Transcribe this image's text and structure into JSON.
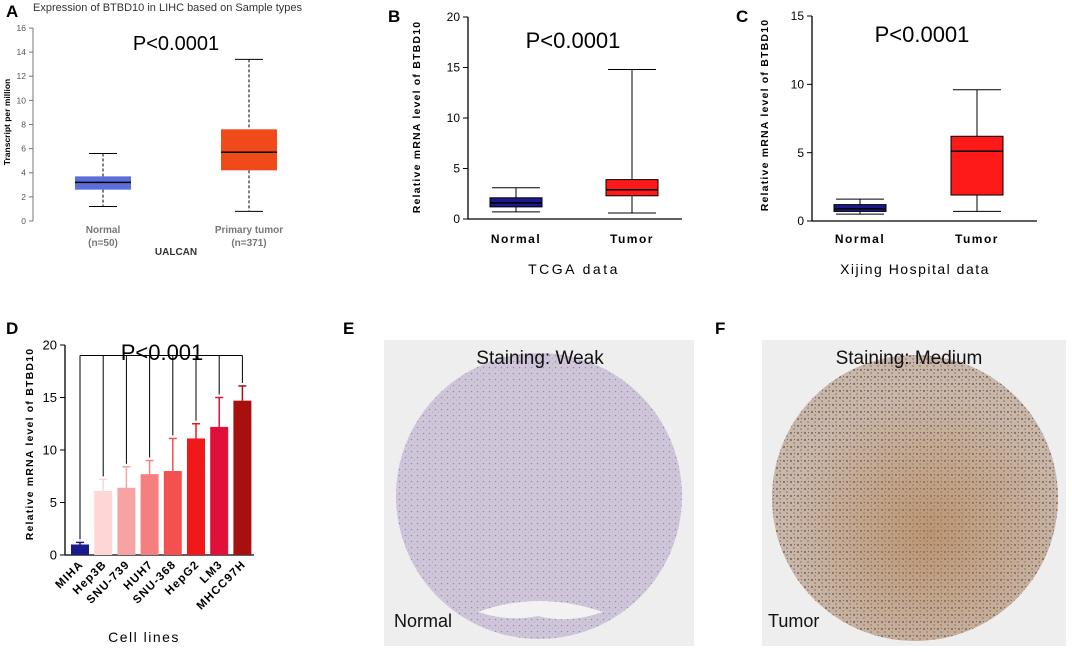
{
  "chart_data": [
    {
      "panel": "A",
      "type": "box",
      "title": "Expression of BTBD10 in LIHC based on Sample types",
      "annotation": "P<0.0001",
      "ylabel": "Transcript per million",
      "ylim": [
        0,
        16
      ],
      "yticks": [
        0,
        2,
        4,
        6,
        8,
        10,
        12,
        14,
        16
      ],
      "source": "UALCAN",
      "groups": [
        {
          "name": "Normal",
          "n": "(n=50)",
          "min": 1.2,
          "q1": 2.6,
          "median": 3.2,
          "q3": 3.7,
          "max": 5.6,
          "color": "#5b6fd9"
        },
        {
          "name": "Primary tumor",
          "n": "(n=371)",
          "min": 0.8,
          "q1": 4.2,
          "median": 5.7,
          "q3": 7.6,
          "max": 13.4,
          "color": "#f04a1a"
        }
      ]
    },
    {
      "panel": "B",
      "type": "box",
      "annotation": "P<0.0001",
      "ylabel": "Relative mRNA level of BTBD10",
      "ylim": [
        0,
        20
      ],
      "yticks": [
        0,
        5,
        10,
        15,
        20
      ],
      "xlabel": "TCGA  data",
      "groups": [
        {
          "name": "Normal",
          "min": 0.7,
          "q1": 1.2,
          "median": 1.6,
          "q3": 2.1,
          "max": 3.1,
          "color": "#1a1a8c"
        },
        {
          "name": "Tumor",
          "min": 0.6,
          "q1": 2.3,
          "median": 2.9,
          "q3": 3.9,
          "max": 14.8,
          "color": "#ff1a1a"
        }
      ]
    },
    {
      "panel": "C",
      "type": "box",
      "annotation": "P<0.0001",
      "ylabel": "Relative mRNA level of BTBD10",
      "ylim": [
        0,
        15
      ],
      "yticks": [
        0,
        5,
        10,
        15
      ],
      "xlabel": "Xijing Hospital data",
      "groups": [
        {
          "name": "Normal",
          "min": 0.5,
          "q1": 0.7,
          "median": 0.9,
          "q3": 1.2,
          "max": 1.6,
          "color": "#1a1a8c"
        },
        {
          "name": "Tumor",
          "min": 0.7,
          "q1": 1.9,
          "median": 5.1,
          "q3": 6.2,
          "max": 9.6,
          "color": "#ff1a1a"
        }
      ]
    },
    {
      "panel": "D",
      "type": "bar",
      "annotation": "P<0.001",
      "ylabel": "Relative mRNA level of BTBD10",
      "ylim": [
        0,
        20
      ],
      "yticks": [
        0,
        5,
        10,
        15,
        20
      ],
      "xlabel": "Cell lines",
      "categories": [
        "MIHA",
        "Hep3B",
        "SNU-739",
        "HUH7",
        "SNU-368",
        "HepG2",
        "LM3",
        "MHCC97H"
      ],
      "values": [
        1.0,
        6.1,
        6.4,
        7.7,
        8.0,
        11.1,
        12.2,
        14.7
      ],
      "errors": [
        0.2,
        1.1,
        2.0,
        1.3,
        3.1,
        1.4,
        2.8,
        1.4
      ],
      "colors": [
        "#1a1a8c",
        "#ffd6d6",
        "#f7a3a3",
        "#f57f7f",
        "#f55050",
        "#f01818",
        "#e0103a",
        "#a80f0f"
      ]
    }
  ],
  "images": [
    {
      "panel": "E",
      "staining": "Staining: Weak",
      "label": "Normal"
    },
    {
      "panel": "F",
      "staining": "Staining: Medium",
      "label": "Tumor"
    }
  ]
}
